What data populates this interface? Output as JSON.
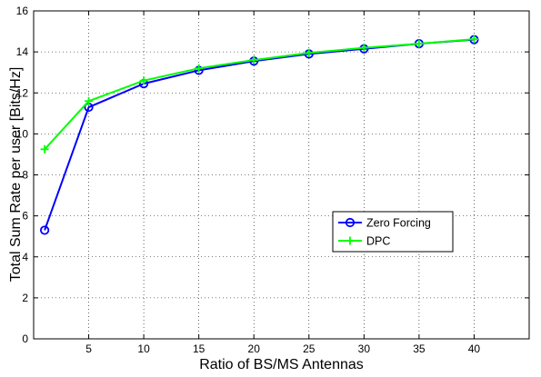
{
  "chart_data": {
    "type": "line",
    "title": "",
    "xlabel": "Ratio of BS/MS Antennas",
    "ylabel": "Total Sum Rate per user [Bits/Hz]",
    "xlim": [
      0,
      45
    ],
    "ylim": [
      0,
      16
    ],
    "xticks": [
      5,
      10,
      15,
      20,
      25,
      30,
      35,
      40
    ],
    "yticks": [
      0,
      2,
      4,
      6,
      8,
      10,
      12,
      14,
      16
    ],
    "grid": true,
    "legend_position": "center-right",
    "x": [
      1,
      5,
      10,
      15,
      20,
      25,
      30,
      35,
      40
    ],
    "series": [
      {
        "name": "Zero Forcing",
        "values": [
          5.3,
          11.3,
          12.45,
          13.1,
          13.55,
          13.9,
          14.15,
          14.4,
          14.6
        ],
        "color": "#0000ff",
        "marker": "circle"
      },
      {
        "name": "DPC",
        "values": [
          9.25,
          11.6,
          12.6,
          13.2,
          13.6,
          13.95,
          14.2,
          14.4,
          14.62
        ],
        "color": "#00ff00",
        "marker": "plus"
      }
    ]
  }
}
